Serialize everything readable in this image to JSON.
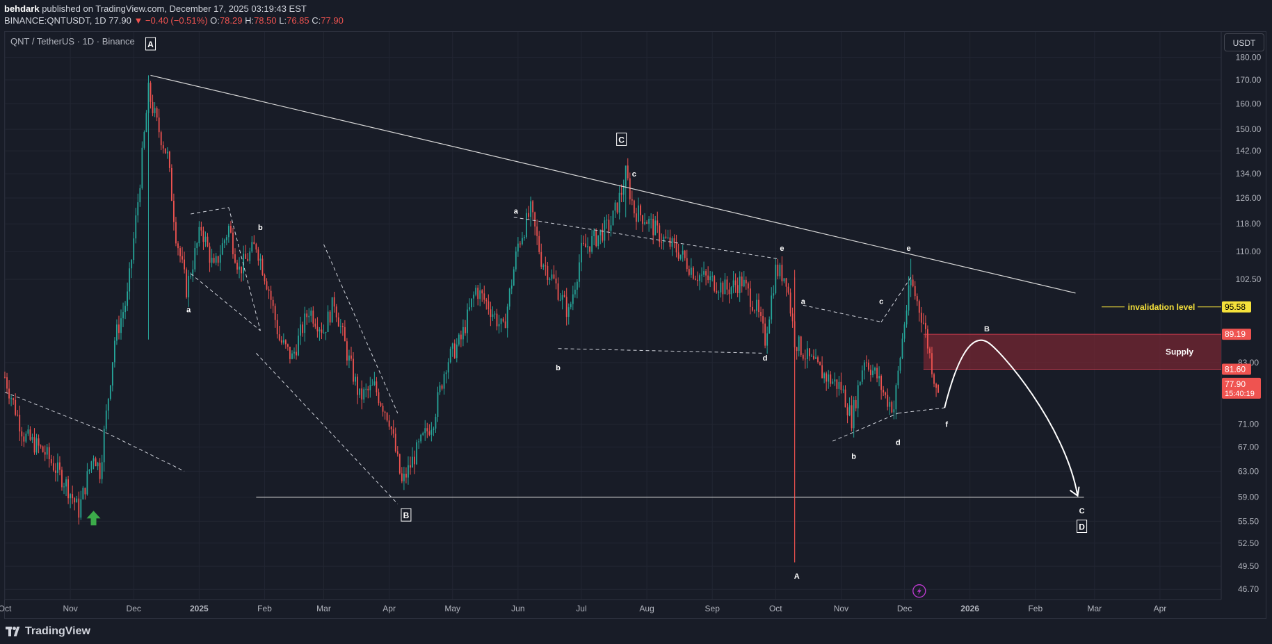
{
  "header": {
    "author": "behdark",
    "published_text": "published on TradingView.com, December 17, 2025 03:19:43 EST",
    "symbol_line": "BINANCE:QNTUSDT, 1D",
    "price": "77.90",
    "change": "▼ −0.40 (−0.51%)",
    "o_label": "O:",
    "o_value": "78.29",
    "h_label": "H:",
    "h_value": "78.50",
    "l_label": "L:",
    "l_value": "76.85",
    "c_label": "C:",
    "c_value": "77.90"
  },
  "legend": "QNT / TetherUS · 1D · Binance",
  "currency_button": "USDT",
  "footer": {
    "brand": "TradingView"
  },
  "colors": {
    "background": "#181c27",
    "up": "#26a69a",
    "down": "#ef5350",
    "supply_zone": "#7a2633",
    "invalidation": "#f5e13b",
    "lines": "#ffffff"
  },
  "chart_data": {
    "type": "candlestick",
    "title": "QNT / TetherUS · 1D · Binance",
    "y_scale": "log",
    "ylim": [
      45.5,
      192
    ],
    "y_ticks": [
      180.0,
      170.0,
      160.0,
      150.0,
      142.0,
      134.0,
      126.0,
      118.0,
      110.0,
      102.5,
      89.19,
      83.0,
      81.6,
      77.9,
      71.0,
      67.0,
      63.0,
      59.0,
      55.5,
      52.5,
      49.5,
      46.7
    ],
    "y_tick_labels": [
      "180.00",
      "170.00",
      "160.00",
      "150.00",
      "142.00",
      "134.00",
      "126.00",
      "118.00",
      "110.00",
      "102.50",
      "",
      "83.00",
      "",
      "",
      "71.00",
      "67.00",
      "63.00",
      "59.00",
      "55.50",
      "52.50",
      "49.50",
      "46.70"
    ],
    "x_range": [
      "2024-10-01",
      "2026-04-30"
    ],
    "x_ticks": [
      {
        "date": "2024-10-01",
        "label": "Oct",
        "bold": false
      },
      {
        "date": "2024-11-01",
        "label": "Nov",
        "bold": false
      },
      {
        "date": "2024-12-01",
        "label": "Dec",
        "bold": false
      },
      {
        "date": "2025-01-01",
        "label": "2025",
        "bold": true
      },
      {
        "date": "2025-02-01",
        "label": "Feb",
        "bold": false
      },
      {
        "date": "2025-03-01",
        "label": "Mar",
        "bold": false
      },
      {
        "date": "2025-04-01",
        "label": "Apr",
        "bold": false
      },
      {
        "date": "2025-05-01",
        "label": "May",
        "bold": false
      },
      {
        "date": "2025-06-01",
        "label": "Jun",
        "bold": false
      },
      {
        "date": "2025-07-01",
        "label": "Jul",
        "bold": false
      },
      {
        "date": "2025-08-01",
        "label": "Aug",
        "bold": false
      },
      {
        "date": "2025-09-01",
        "label": "Sep",
        "bold": false
      },
      {
        "date": "2025-10-01",
        "label": "Oct",
        "bold": false
      },
      {
        "date": "2025-11-01",
        "label": "Nov",
        "bold": false
      },
      {
        "date": "2025-12-01",
        "label": "Dec",
        "bold": false
      },
      {
        "date": "2026-01-01",
        "label": "2026",
        "bold": true
      },
      {
        "date": "2026-02-01",
        "label": "Feb",
        "bold": false
      },
      {
        "date": "2026-03-01",
        "label": "Mar",
        "bold": false
      },
      {
        "date": "2026-04-01",
        "label": "Apr",
        "bold": false
      }
    ],
    "price_path": [
      [
        "2024-10-01",
        80
      ],
      [
        "2024-10-10",
        69
      ],
      [
        "2024-10-20",
        66
      ],
      [
        "2024-10-30",
        61
      ],
      [
        "2024-11-05",
        57
      ],
      [
        "2024-11-12",
        66
      ],
      [
        "2024-11-15",
        63
      ],
      [
        "2024-11-22",
        88
      ],
      [
        "2024-11-28",
        98
      ],
      [
        "2024-12-03",
        125
      ],
      [
        "2024-12-08",
        165
      ],
      [
        "2024-12-12",
        152
      ],
      [
        "2024-12-17",
        140
      ],
      [
        "2024-12-21",
        115
      ],
      [
        "2024-12-26",
        100
      ],
      [
        "2025-01-02",
        117
      ],
      [
        "2025-01-08",
        105
      ],
      [
        "2025-01-15",
        117
      ],
      [
        "2025-01-20",
        105
      ],
      [
        "2025-01-28",
        112
      ],
      [
        "2025-02-03",
        100
      ],
      [
        "2025-02-08",
        88
      ],
      [
        "2025-02-14",
        84
      ],
      [
        "2025-02-22",
        95
      ],
      [
        "2025-03-01",
        90
      ],
      [
        "2025-03-06",
        97
      ],
      [
        "2025-03-12",
        85
      ],
      [
        "2025-03-18",
        76
      ],
      [
        "2025-03-25",
        78
      ],
      [
        "2025-04-01",
        72
      ],
      [
        "2025-04-07",
        61
      ],
      [
        "2025-04-15",
        67
      ],
      [
        "2025-04-22",
        72
      ],
      [
        "2025-04-28",
        83
      ],
      [
        "2025-05-05",
        88
      ],
      [
        "2025-05-12",
        100
      ],
      [
        "2025-05-18",
        96
      ],
      [
        "2025-05-25",
        90
      ],
      [
        "2025-06-01",
        112
      ],
      [
        "2025-06-07",
        122
      ],
      [
        "2025-06-12",
        108
      ],
      [
        "2025-06-18",
        102
      ],
      [
        "2025-06-25",
        94
      ],
      [
        "2025-07-01",
        110
      ],
      [
        "2025-07-08",
        114
      ],
      [
        "2025-07-15",
        118
      ],
      [
        "2025-07-20",
        128
      ],
      [
        "2025-07-22",
        134
      ],
      [
        "2025-07-26",
        122
      ],
      [
        "2025-07-31",
        120
      ],
      [
        "2025-08-08",
        114
      ],
      [
        "2025-08-16",
        110
      ],
      [
        "2025-08-24",
        104
      ],
      [
        "2025-09-01",
        102
      ],
      [
        "2025-09-08",
        100
      ],
      [
        "2025-09-15",
        102
      ],
      [
        "2025-09-22",
        95
      ],
      [
        "2025-09-26",
        88
      ],
      [
        "2025-10-01",
        105
      ],
      [
        "2025-10-06",
        103
      ],
      [
        "2025-10-10",
        88
      ],
      [
        "2025-10-16",
        84
      ],
      [
        "2025-10-25",
        80
      ],
      [
        "2025-11-01",
        78
      ],
      [
        "2025-11-06",
        72
      ],
      [
        "2025-11-12",
        84
      ],
      [
        "2025-11-18",
        80
      ],
      [
        "2025-11-22",
        76
      ],
      [
        "2025-11-26",
        74
      ],
      [
        "2025-12-01",
        92
      ],
      [
        "2025-12-04",
        102
      ],
      [
        "2025-12-10",
        92
      ],
      [
        "2025-12-15",
        80
      ],
      [
        "2025-12-17",
        77.9
      ]
    ],
    "wicks": [
      {
        "date": "2024-12-08",
        "low": 88,
        "high": 172
      },
      {
        "date": "2025-07-22",
        "low": 120,
        "high": 136
      },
      {
        "date": "2025-10-10",
        "low": 50,
        "high": 105
      },
      {
        "date": "2025-12-04",
        "low": 98,
        "high": 108
      }
    ],
    "annotations": {
      "boxed_labels": [
        {
          "text": "A",
          "date": "2024-12-09",
          "price": 186
        },
        {
          "text": "C",
          "date": "2025-07-20",
          "price": 146
        },
        {
          "text": "B",
          "date": "2025-04-09",
          "price": 56.3
        },
        {
          "text": "D",
          "date": "2026-02-23",
          "price": 54.7
        }
      ],
      "plain_labels": [
        {
          "text": "a",
          "date": "2024-12-27",
          "price": 95
        },
        {
          "text": "b",
          "date": "2025-01-30",
          "price": 117
        },
        {
          "text": "a",
          "date": "2025-05-31",
          "price": 122
        },
        {
          "text": "b",
          "date": "2025-06-20",
          "price": 82
        },
        {
          "text": "c",
          "date": "2025-07-26",
          "price": 134
        },
        {
          "text": "d",
          "date": "2025-09-26",
          "price": 84
        },
        {
          "text": "e",
          "date": "2025-10-04",
          "price": 111
        },
        {
          "text": "a",
          "date": "2025-10-14",
          "price": 97
        },
        {
          "text": "b",
          "date": "2025-11-07",
          "price": 65.5
        },
        {
          "text": "c",
          "date": "2025-11-20",
          "price": 97
        },
        {
          "text": "d",
          "date": "2025-11-28",
          "price": 67.8
        },
        {
          "text": "e",
          "date": "2025-12-03",
          "price": 111
        },
        {
          "text": "f",
          "date": "2025-12-21",
          "price": 71
        },
        {
          "text": "A",
          "date": "2025-10-11",
          "price": 48.3
        },
        {
          "text": "B",
          "date": "2026-01-09",
          "price": 90.5
        },
        {
          "text": "C",
          "date": "2026-02-23",
          "price": 57
        }
      ],
      "trendline": {
        "from": [
          "2024-12-09",
          172
        ],
        "to": [
          "2026-02-20",
          99
        ]
      },
      "support_line": {
        "from": [
          "2025-01-28",
          59
        ],
        "to": [
          "2026-02-24",
          59
        ]
      },
      "invalidation_level": {
        "label": "invalidation level",
        "value": "95.58",
        "price": 95.58
      },
      "supply_zone": {
        "label": "Supply",
        "top": 89.19,
        "bottom": 81.6,
        "top_label": "89.19",
        "bottom_label": "81.60"
      },
      "current_price": {
        "value": "77.90",
        "countdown": "15:40:19"
      }
    }
  }
}
